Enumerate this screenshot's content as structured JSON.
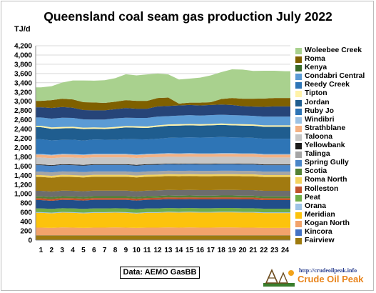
{
  "chart_data": {
    "type": "area",
    "stacked": true,
    "title": "Queensland coal seam gas production July 2022",
    "ylabel": "TJ/d",
    "xlabel": "",
    "ylim": [
      0,
      4200
    ],
    "yticks": [
      0,
      200,
      400,
      600,
      800,
      1000,
      1200,
      1400,
      1600,
      1800,
      2000,
      2200,
      2400,
      2600,
      2800,
      3000,
      3200,
      3400,
      3600,
      3800,
      4000,
      4200
    ],
    "ytick_labels": [
      "0",
      "200",
      "400",
      "600",
      "800",
      "1,000",
      "1,200",
      "1,400",
      "1,600",
      "1,800",
      "2,000",
      "2,200",
      "2,400",
      "2,600",
      "2,800",
      "3,000",
      "3,200",
      "3,400",
      "3,600",
      "3,800",
      "4,000",
      "4,200"
    ],
    "x": [
      1,
      2,
      3,
      4,
      5,
      6,
      7,
      8,
      9,
      10,
      11,
      12,
      13,
      14,
      15,
      16,
      17,
      18,
      19,
      20,
      21,
      22,
      23,
      24
    ],
    "grid": true,
    "legend_position": "right",
    "series": [
      {
        "name": "Fairview",
        "color": "#9e7a0e",
        "values": [
          100,
          100,
          100,
          100,
          100,
          100,
          100,
          100,
          100,
          100,
          100,
          100,
          100,
          100,
          100,
          100,
          100,
          100,
          100,
          100,
          100,
          100,
          100,
          100
        ]
      },
      {
        "name": "Kincora",
        "color": "#2d5b9e",
        "values": [
          5,
          5,
          5,
          5,
          5,
          5,
          5,
          5,
          5,
          5,
          5,
          5,
          5,
          5,
          5,
          5,
          5,
          5,
          5,
          5,
          5,
          5,
          5,
          5
        ]
      },
      {
        "name": "Kogan North",
        "color": "#f2a36b",
        "values": [
          165,
          160,
          170,
          165,
          160,
          165,
          165,
          170,
          165,
          160,
          165,
          165,
          170,
          165,
          170,
          165,
          165,
          170,
          170,
          165,
          165,
          160,
          160,
          160
        ]
      },
      {
        "name": "Meridian",
        "color": "#fcc30c",
        "values": [
          320,
          315,
          320,
          320,
          315,
          320,
          320,
          320,
          320,
          310,
          320,
          320,
          325,
          325,
          325,
          325,
          325,
          325,
          325,
          325,
          325,
          320,
          320,
          320
        ]
      },
      {
        "name": "Orana",
        "color": "#9dc3e6",
        "values": [
          15,
          15,
          15,
          15,
          15,
          15,
          15,
          15,
          15,
          15,
          15,
          15,
          15,
          15,
          15,
          15,
          15,
          15,
          15,
          15,
          15,
          15,
          15,
          15
        ]
      },
      {
        "name": "Peat",
        "color": "#70ad47",
        "values": [
          80,
          80,
          80,
          80,
          80,
          80,
          80,
          80,
          80,
          80,
          80,
          80,
          80,
          80,
          80,
          80,
          80,
          80,
          80,
          80,
          80,
          80,
          80,
          80
        ]
      },
      {
        "name": "Rolleston",
        "color": "#214e8a",
        "values": [
          180,
          175,
          180,
          180,
          180,
          185,
          185,
          180,
          185,
          185,
          185,
          190,
          190,
          190,
          190,
          190,
          190,
          190,
          190,
          190,
          190,
          185,
          185,
          185
        ]
      },
      {
        "name": "Roma North",
        "color": "#c1522b",
        "values": [
          40,
          40,
          40,
          40,
          40,
          40,
          40,
          40,
          40,
          40,
          40,
          40,
          40,
          40,
          40,
          40,
          40,
          40,
          40,
          40,
          40,
          40,
          40,
          40
        ]
      },
      {
        "name": "Scotia",
        "color": "#548235",
        "values": [
          40,
          40,
          40,
          40,
          40,
          40,
          40,
          40,
          40,
          40,
          40,
          40,
          40,
          40,
          40,
          40,
          40,
          40,
          40,
          40,
          40,
          40,
          40,
          40
        ]
      },
      {
        "name": "Spring Gully",
        "color": "#6d6d6d",
        "values": [
          120,
          120,
          120,
          120,
          120,
          120,
          120,
          120,
          120,
          120,
          120,
          120,
          120,
          120,
          120,
          120,
          120,
          120,
          120,
          120,
          120,
          120,
          120,
          120
        ]
      },
      {
        "name": "Talinga",
        "color": "#a17a10",
        "values": [
          300,
          300,
          300,
          300,
          300,
          300,
          300,
          300,
          300,
          300,
          300,
          300,
          300,
          300,
          300,
          300,
          300,
          300,
          300,
          300,
          300,
          300,
          300,
          300
        ]
      },
      {
        "name": "Yellowbank",
        "color": "#f4d35e",
        "values": [
          40,
          40,
          40,
          40,
          40,
          40,
          40,
          40,
          40,
          40,
          40,
          40,
          40,
          40,
          40,
          40,
          40,
          40,
          40,
          40,
          40,
          40,
          40,
          40
        ]
      },
      {
        "name": "Taloona",
        "color": "#a5a5a5",
        "values": [
          75,
          75,
          75,
          75,
          75,
          75,
          75,
          75,
          75,
          75,
          75,
          75,
          75,
          75,
          75,
          75,
          75,
          75,
          75,
          75,
          75,
          75,
          75,
          75
        ]
      },
      {
        "name": "Strathblane",
        "color": "#4a86c8",
        "values": [
          140,
          140,
          140,
          140,
          140,
          140,
          140,
          140,
          140,
          140,
          140,
          140,
          140,
          140,
          140,
          140,
          140,
          140,
          140,
          140,
          140,
          140,
          140,
          140
        ]
      },
      {
        "name": "Windibri",
        "color": "#1c1c1c",
        "values": [
          15,
          15,
          15,
          15,
          15,
          15,
          15,
          15,
          15,
          15,
          15,
          15,
          15,
          15,
          15,
          15,
          15,
          15,
          15,
          15,
          15,
          15,
          15,
          15
        ]
      },
      {
        "name": "Ruby Jo",
        "color": "#c6c6c6",
        "values": [
          150,
          150,
          150,
          150,
          150,
          150,
          150,
          150,
          150,
          150,
          150,
          150,
          150,
          150,
          150,
          150,
          150,
          150,
          150,
          150,
          150,
          150,
          150,
          150
        ]
      },
      {
        "name": "Jordan",
        "color": "#f4b183",
        "values": [
          60,
          60,
          60,
          60,
          60,
          60,
          60,
          60,
          60,
          60,
          60,
          60,
          60,
          60,
          60,
          60,
          60,
          60,
          60,
          60,
          60,
          60,
          60,
          60
        ]
      },
      {
        "name": "Tipton",
        "color": "#9cc2e5",
        "values": [
          15,
          15,
          15,
          15,
          15,
          15,
          15,
          15,
          15,
          15,
          15,
          15,
          15,
          15,
          15,
          15,
          15,
          15,
          15,
          15,
          15,
          15,
          15,
          15
        ]
      },
      {
        "name": "Reedy Creek",
        "color": "#2e75b6",
        "values": [
          320,
          310,
          300,
          310,
          300,
          310,
          305,
          300,
          320,
          330,
          310,
          320,
          330,
          340,
          340,
          340,
          345,
          350,
          340,
          340,
          335,
          330,
          330,
          330
        ]
      },
      {
        "name": "Condabri Central",
        "color": "#1f5d8f",
        "values": [
          260,
          250,
          250,
          250,
          250,
          230,
          230,
          250,
          250,
          250,
          250,
          260,
          260,
          260,
          260,
          260,
          260,
          260,
          260,
          260,
          260,
          260,
          260,
          260
        ]
      },
      {
        "name": "Kenya",
        "color": "#fff2a8",
        "values": [
          30,
          30,
          30,
          30,
          30,
          30,
          30,
          30,
          30,
          30,
          30,
          30,
          30,
          30,
          30,
          30,
          30,
          30,
          30,
          30,
          30,
          30,
          30,
          30
        ]
      },
      {
        "name": "Roma",
        "color": "#5b9bd5",
        "values": [
          180,
          190,
          200,
          190,
          180,
          170,
          175,
          185,
          180,
          180,
          185,
          190,
          180,
          185,
          190,
          185,
          190,
          190,
          190,
          190,
          185,
          190,
          190,
          190
        ]
      },
      {
        "name": "Woleebee Creek",
        "color": "#264478",
        "values": [
          220,
          230,
          230,
          220,
          200,
          200,
          200,
          200,
          210,
          200,
          200,
          220,
          220,
          220,
          220,
          220,
          220,
          220,
          220,
          200,
          200,
          210,
          220,
          220
        ]
      },
      {
        "name": "",
        "color": "#44546a",
        "values": [
          0,
          0,
          0,
          0,
          0,
          0,
          0,
          0,
          0,
          0,
          0,
          0,
          0,
          0,
          0,
          0,
          0,
          0,
          0,
          0,
          0,
          0,
          0,
          0
        ]
      },
      {
        "name": "",
        "color": "#a5a5a5",
        "values": [
          0,
          0,
          0,
          0,
          0,
          0,
          0,
          0,
          0,
          0,
          0,
          0,
          0,
          0,
          0,
          0,
          0,
          0,
          0,
          0,
          0,
          0,
          0,
          0
        ]
      },
      {
        "name": "",
        "color": "#3a6b2a",
        "values": [
          0,
          0,
          0,
          0,
          0,
          0,
          0,
          0,
          0,
          0,
          0,
          0,
          0,
          0,
          0,
          0,
          0,
          0,
          0,
          0,
          0,
          0,
          0,
          0
        ]
      },
      {
        "name": "",
        "color": "#6d6d6d",
        "values": [
          0,
          0,
          0,
          0,
          0,
          0,
          0,
          0,
          0,
          0,
          0,
          0,
          0,
          0,
          0,
          0,
          0,
          0,
          0,
          0,
          0,
          0,
          0,
          0
        ]
      },
      {
        "name": "",
        "color": "#7f6000",
        "values": [
          140,
          170,
          180,
          180,
          170,
          170,
          160,
          160,
          170,
          170,
          170,
          180,
          180,
          40,
          50,
          60,
          60,
          120,
          150,
          160,
          170,
          180,
          180,
          180
        ]
      },
      {
        "name": "",
        "color": "#a9d18e",
        "values": [
          290,
          300,
          350,
          410,
          470,
          470,
          490,
          510,
          560,
          550,
          570,
          530,
          500,
          520,
          520,
          540,
          580,
          580,
          620,
          630,
          600,
          600,
          590,
          580
        ]
      }
    ]
  },
  "legend_items": [
    {
      "label": "Woleebee Creek",
      "color": "#a9d18e"
    },
    {
      "label": "Roma",
      "color": "#7f6000"
    },
    {
      "label": "Kenya",
      "color": "#3a6b2a"
    },
    {
      "label": "Condabri Central",
      "color": "#5b9bd5"
    },
    {
      "label": "Reedy Creek",
      "color": "#2e75b6"
    },
    {
      "label": "Tipton",
      "color": "#fff2a8"
    },
    {
      "label": "Jordan",
      "color": "#1f5d8f"
    },
    {
      "label": "Ruby Jo",
      "color": "#2e75b6"
    },
    {
      "label": "Windibri",
      "color": "#9cc2e5"
    },
    {
      "label": "Strathblane",
      "color": "#f4b183"
    },
    {
      "label": "Taloona",
      "color": "#c6c6c6"
    },
    {
      "label": "Yellowbank",
      "color": "#1c1c1c"
    },
    {
      "label": "Talinga",
      "color": "#a5a5a5"
    },
    {
      "label": "Spring Gully",
      "color": "#4a86c8"
    },
    {
      "label": "Scotia",
      "color": "#548235"
    },
    {
      "label": "Roma North",
      "color": "#f4d35e"
    },
    {
      "label": "Rolleston",
      "color": "#c1522b"
    },
    {
      "label": "Peat",
      "color": "#70ad47"
    },
    {
      "label": "Orana",
      "color": "#9dc3e6"
    },
    {
      "label": "Meridian",
      "color": "#fcc30c"
    },
    {
      "label": "Kogan North",
      "color": "#f2a36b"
    },
    {
      "label": "Kincora",
      "color": "#4472c4"
    },
    {
      "label": "Fairview",
      "color": "#9e7a0e"
    }
  ],
  "source_note": "Data: AEMO GasBB",
  "logo": {
    "url": "http://crudeoilpeak.info",
    "name": "Crude Oil Peak"
  }
}
